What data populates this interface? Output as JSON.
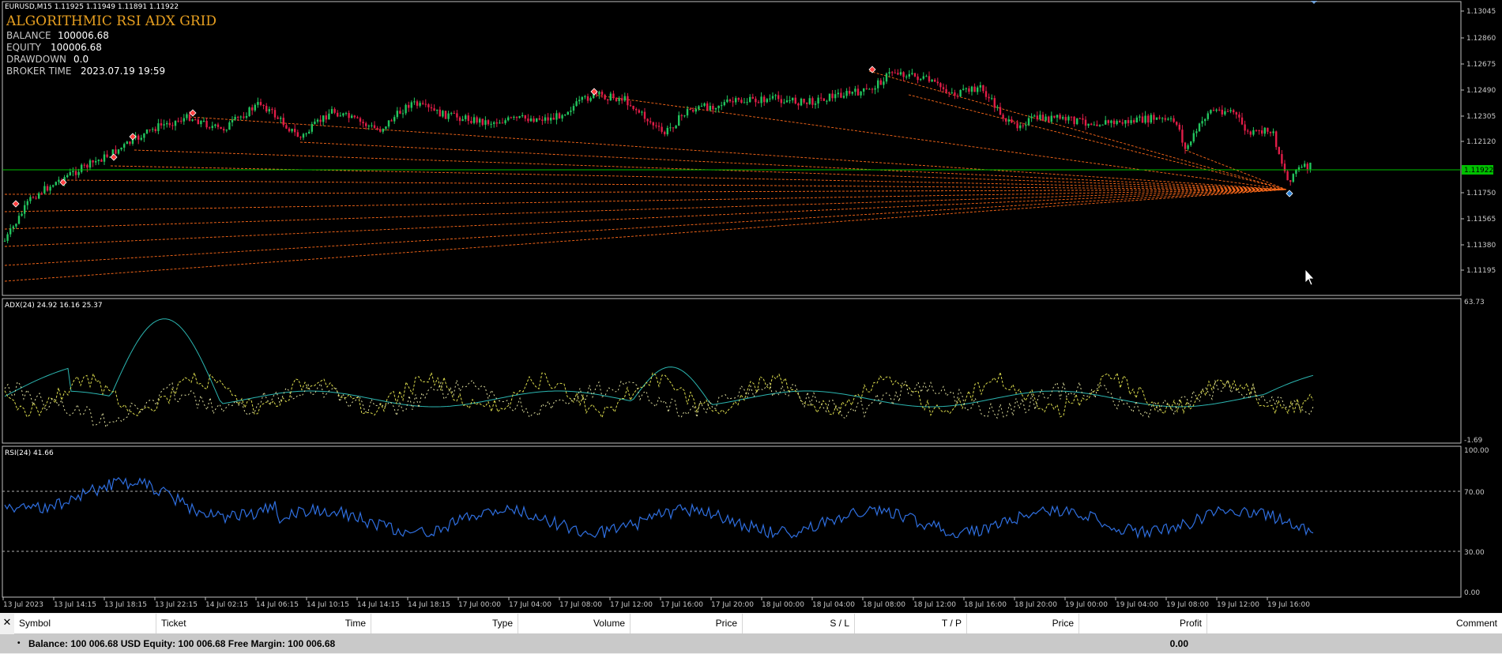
{
  "symbol_header": "EURUSD,M15  1.11925 1.11949 1.11891 1.11922",
  "overlay": {
    "title": "ALGORITHMIC RSI ADX GRID",
    "rows": [
      {
        "label": "BALANCE",
        "value": "100006.68"
      },
      {
        "label": "EQUITY",
        "value": "100006.68"
      },
      {
        "label": "DRAWDOWN",
        "value": "0.0"
      },
      {
        "label": "BROKER TIME",
        "value": "2023.07.19 19:59"
      }
    ]
  },
  "price_axis": {
    "labels": [
      "1.13045",
      "1.12860",
      "1.12675",
      "1.12490",
      "1.12305",
      "1.12120",
      "1.11750",
      "1.11565",
      "1.11380",
      "1.11195"
    ],
    "current": "1.11922"
  },
  "adx_panel": {
    "label": "ADX(24) 24.92 16.16 25.37",
    "axis_max": "63.73",
    "axis_min": "-1.69"
  },
  "rsi_panel": {
    "label": "RSI(24) 41.66",
    "axis": [
      "100.00",
      "70.00",
      "30.00",
      "0.00"
    ]
  },
  "time_axis": [
    "13 Jul 2023",
    "13 Jul 14:15",
    "13 Jul 18:15",
    "13 Jul 22:15",
    "14 Jul 02:15",
    "14 Jul 06:15",
    "14 Jul 10:15",
    "14 Jul 14:15",
    "14 Jul 18:15",
    "17 Jul 00:00",
    "17 Jul 04:00",
    "17 Jul 08:00",
    "17 Jul 12:00",
    "17 Jul 16:00",
    "17 Jul 20:00",
    "18 Jul 00:00",
    "18 Jul 04:00",
    "18 Jul 08:00",
    "18 Jul 12:00",
    "18 Jul 16:00",
    "18 Jul 20:00",
    "19 Jul 00:00",
    "19 Jul 04:00",
    "19 Jul 08:00",
    "19 Jul 12:00",
    "19 Jul 16:00"
  ],
  "colors": {
    "bull": "#22c55e",
    "bear": "#e11d48",
    "grid_line": "#ff6a1a",
    "price_line": "#00c000",
    "rsi": "#2f6fe0",
    "adx_main": "#2bb5b0",
    "adx_di": "#d9d94c",
    "overlay_title": "#e8a020"
  },
  "terminal": {
    "columns": [
      "Symbol",
      "Ticket",
      "Time",
      "Type",
      "Volume",
      "Price",
      "S / L",
      "T / P",
      "Price",
      "Profit",
      "Comment"
    ],
    "summary": "Balance: 100 006.68 USD  Equity: 100 006.68  Free Margin: 100 006.68",
    "profit_total": "0.00"
  },
  "icons": {
    "close": "close-icon",
    "cursor": "mouse-pointer-icon",
    "arrow_marker": "sell-arrow-icon",
    "buy_marker": "buy-arrow-icon"
  }
}
